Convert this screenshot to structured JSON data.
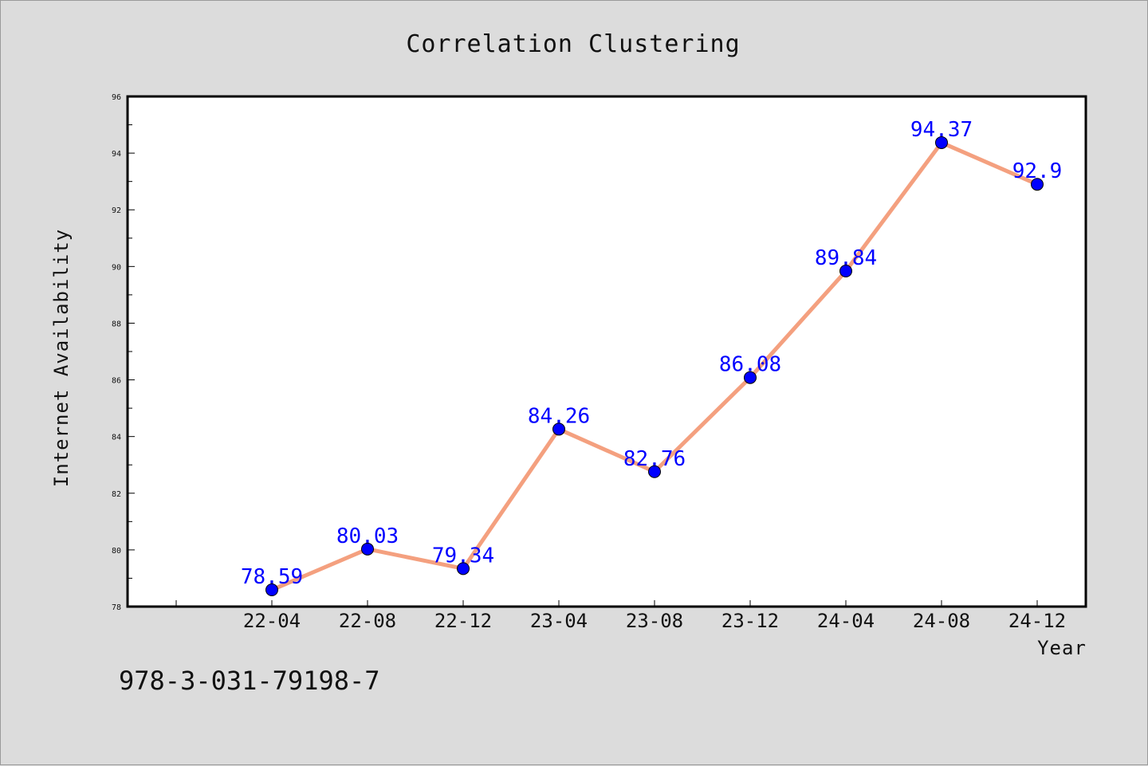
{
  "chart_data": {
    "type": "line",
    "title": "Correlation Clustering",
    "xlabel": "Year",
    "ylabel": "Internet Availability",
    "categories": [
      "22-04",
      "22-08",
      "22-12",
      "23-04",
      "23-08",
      "23-12",
      "24-04",
      "24-08",
      "24-12"
    ],
    "series": [
      {
        "values": [
          78.59,
          80.03,
          79.34,
          84.26,
          82.76,
          86.08,
          89.84,
          94.37,
          92.9
        ],
        "labels": [
          "78.59",
          "80.03",
          "79.34",
          "84.26",
          "82.76",
          "86.08",
          "89.84",
          "94.37",
          "92.9"
        ],
        "line_color": "#f4a07f",
        "marker_color": "#0000ff"
      }
    ],
    "ylim": [
      78,
      96
    ],
    "yticks": [
      "78",
      "80",
      "82",
      "84",
      "86",
      "88",
      "90",
      "92",
      "94",
      "96"
    ],
    "grid": false,
    "legend": "none"
  },
  "footnote": "978-3-031-79198-7"
}
